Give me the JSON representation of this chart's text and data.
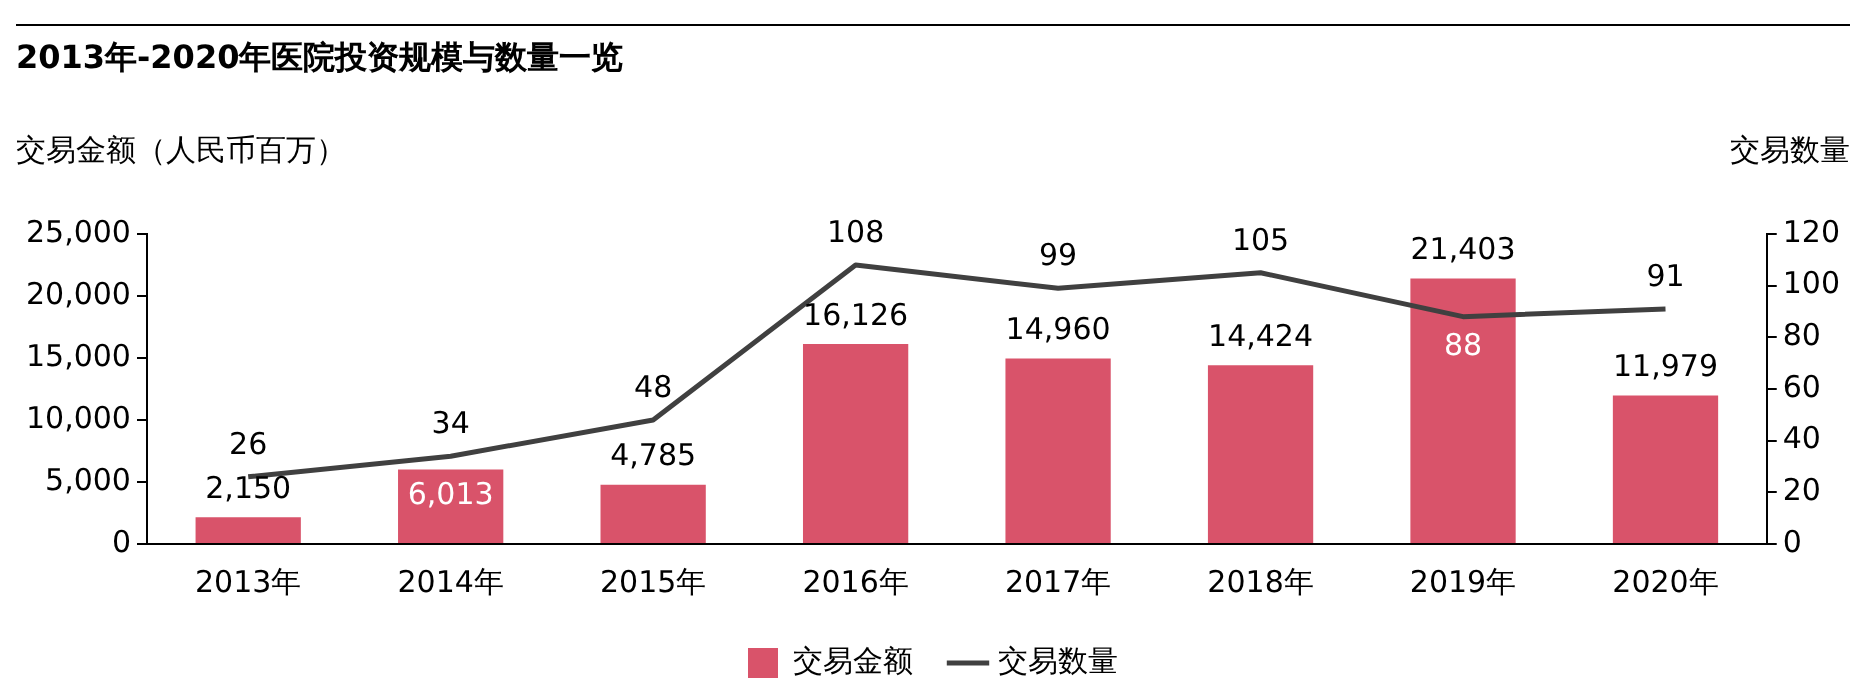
{
  "chart_data": {
    "type": "bar",
    "title": "2013年-2020年医院投资规模与数量一览",
    "ylabel": "交易金额（人民币百万）",
    "y2label": "交易数量",
    "categories": [
      "2013年",
      "2014年",
      "2015年",
      "2016年",
      "2017年",
      "2018年",
      "2019年",
      "2020年"
    ],
    "series": [
      {
        "name": "交易金额",
        "color": "#d9536a",
        "values": [
          2150,
          6013,
          4785,
          16126,
          14960,
          14424,
          21403,
          11979
        ],
        "value_labels": [
          "2,150",
          "6,013",
          "4,785",
          "16,126",
          "14,960",
          "14,424",
          "21,403",
          "11,979"
        ]
      },
      {
        "name": "交易数量",
        "type": "line",
        "axis": "y2",
        "color": "#404040",
        "values": [
          26,
          34,
          48,
          108,
          99,
          105,
          88,
          91
        ],
        "value_labels": [
          "26",
          "34",
          "48",
          "108",
          "99",
          "105",
          "88",
          "91"
        ]
      }
    ],
    "ylim": [
      0,
      25000
    ],
    "yticks": [
      {
        "value": 0,
        "label": "0"
      },
      {
        "value": 5000,
        "label": "5,000"
      },
      {
        "value": 10000,
        "label": "10,000"
      },
      {
        "value": 15000,
        "label": "15,000"
      },
      {
        "value": 20000,
        "label": "20,000"
      },
      {
        "value": 25000,
        "label": "25,000"
      }
    ],
    "y2lim": [
      0,
      120
    ],
    "y2ticks": [
      0,
      20,
      40,
      60,
      80,
      100,
      120
    ],
    "grid": false,
    "legend": "bottom",
    "marker": "none",
    "line_style": "solid"
  }
}
